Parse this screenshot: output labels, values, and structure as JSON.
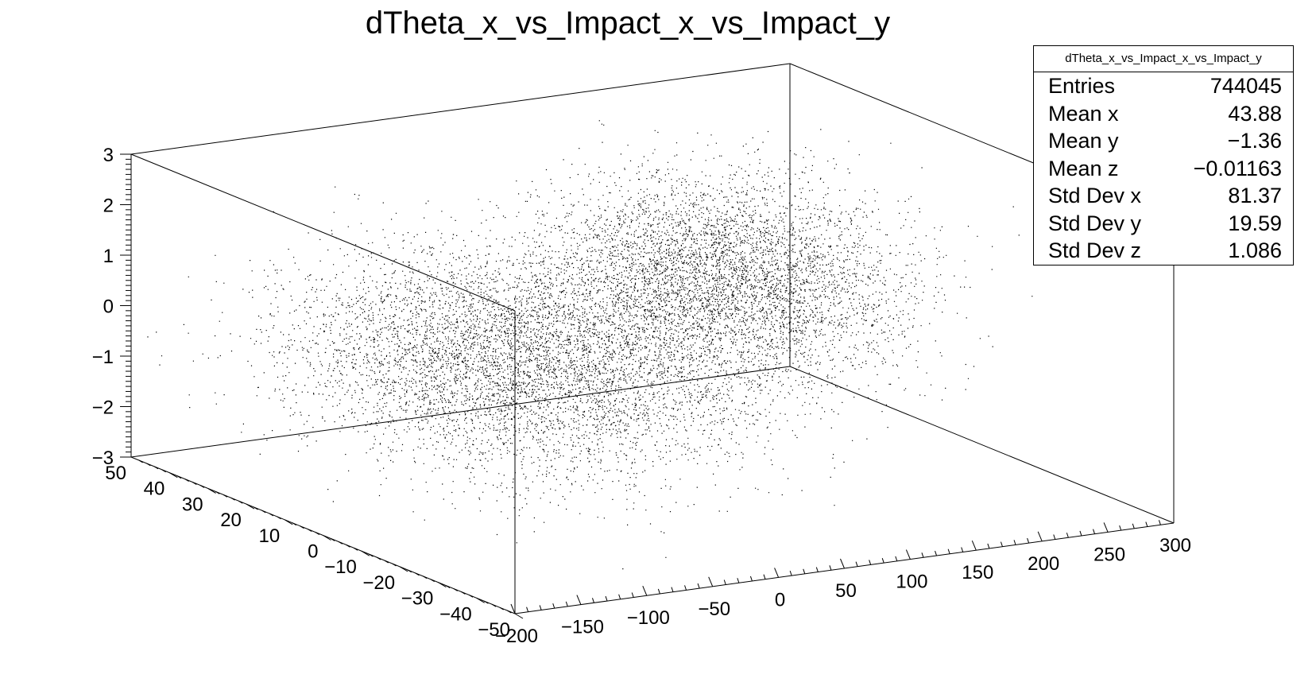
{
  "chart_data": {
    "type": "scatter",
    "title": "dTheta_x_vs_Impact_x_vs_Impact_y",
    "x_axis": {
      "range": [
        -200,
        300
      ],
      "ticks": [
        "−200",
        "−150",
        "−100",
        "−50",
        "0",
        "50",
        "100",
        "150",
        "200",
        "250",
        "300"
      ]
    },
    "y_axis": {
      "range": [
        -50,
        50
      ],
      "ticks": [
        "−50",
        "−40",
        "−30",
        "−20",
        "−10",
        "0",
        "10",
        "20",
        "30",
        "40",
        "50"
      ]
    },
    "z_axis": {
      "range": [
        -3,
        3
      ],
      "ticks": [
        "−3",
        "−2",
        "−1",
        "0",
        "1",
        "2",
        "3"
      ]
    },
    "clusters": [
      {
        "x_center": -40,
        "y_center": 5,
        "z_center": -0.3,
        "sx": 70,
        "sy": 20,
        "sz": 0.9,
        "fraction": 0.65
      },
      {
        "x_center": 160,
        "y_center": 20,
        "z_center": 0.2,
        "sx": 55,
        "sy": 15,
        "sz": 0.9,
        "fraction": 0.35
      }
    ],
    "point_color": "#000000"
  },
  "stats": {
    "name": "dTheta_x_vs_Impact_x_vs_Impact_y",
    "rows": [
      {
        "label": "Entries",
        "value": "744045"
      },
      {
        "label": "Mean x",
        "value": "43.88"
      },
      {
        "label": "Mean y",
        "value": "−1.36"
      },
      {
        "label": "Mean z",
        "value": "−0.01163"
      },
      {
        "label": "Std Dev x",
        "value": "81.37"
      },
      {
        "label": "Std Dev y",
        "value": "19.59"
      },
      {
        "label": "Std Dev z",
        "value": "1.086"
      }
    ]
  }
}
